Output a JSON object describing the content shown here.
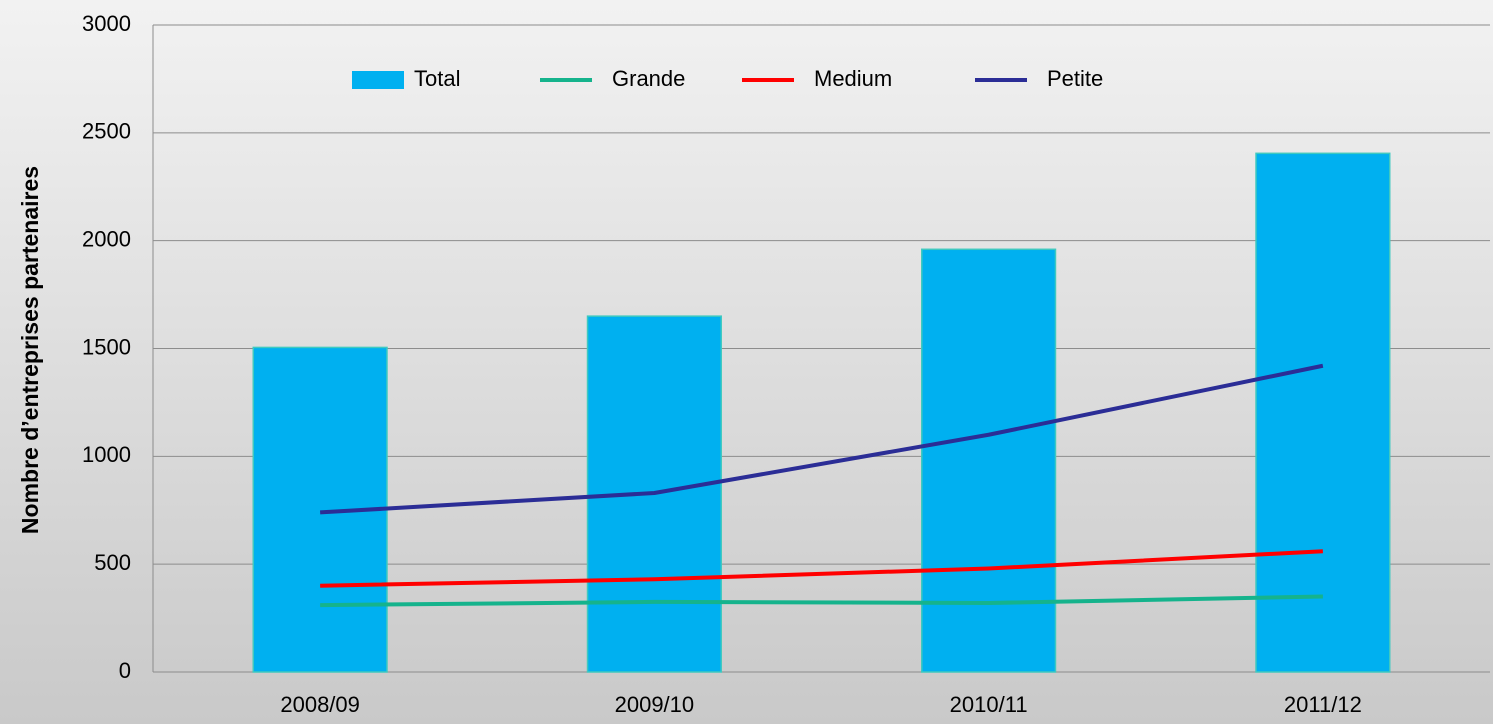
{
  "chart_data": {
    "type": "combo",
    "y_label": "Nombre d’entreprises partenaires",
    "categories": [
      "2008/09",
      "2009/10",
      "2010/11",
      "2011/12"
    ],
    "series": [
      {
        "name": "Total",
        "type": "bar",
        "color": "#00b0f0",
        "values": [
          1505,
          1650,
          1960,
          2405
        ]
      },
      {
        "name": "Grande",
        "type": "line",
        "color": "#15b38c",
        "values": [
          310,
          325,
          320,
          350
        ]
      },
      {
        "name": "Medium",
        "type": "line",
        "color": "#ff0000",
        "values": [
          400,
          430,
          480,
          560
        ]
      },
      {
        "name": "Petite",
        "type": "line",
        "color": "#2b2d96",
        "values": [
          740,
          830,
          1100,
          1420
        ]
      }
    ],
    "ylim": [
      0,
      3000
    ],
    "yticks": [
      0,
      500,
      1000,
      1500,
      2000,
      2500,
      3000
    ],
    "grid": true,
    "legend": "top"
  }
}
